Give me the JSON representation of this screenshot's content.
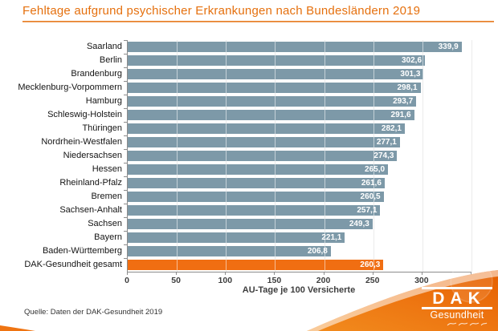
{
  "title": "Fehltage aufgrund psychischer Erkrankungen nach Bundesländern 2019",
  "chart_data": {
    "type": "bar",
    "orientation": "horizontal",
    "categories": [
      "Saarland",
      "Berlin",
      "Brandenburg",
      "Mecklenburg-Vorpommern",
      "Hamburg",
      "Schleswig-Holstein",
      "Thüringen",
      "Nordrhein-Westfalen",
      "Niedersachsen",
      "Hessen",
      "Rheinland-Pfalz",
      "Bremen",
      "Sachsen-Anhalt",
      "Sachsen",
      "Bayern",
      "Baden-Württemberg",
      "DAK-Gesundheit gesamt"
    ],
    "values": [
      339.9,
      302.6,
      301.3,
      298.1,
      293.7,
      291.6,
      282.1,
      277.1,
      274.3,
      265.0,
      261.6,
      260.5,
      257.1,
      249.3,
      221.1,
      206.8,
      260.3
    ],
    "value_labels": [
      "339,9",
      "302,6",
      "301,3",
      "298,1",
      "293,7",
      "291,6",
      "282,1",
      "277,1",
      "274,3",
      "265,0",
      "261,6",
      "260,5",
      "257,1",
      "249,3",
      "221,1",
      "206,8",
      "260,3"
    ],
    "title": "Fehltage aufgrund psychischer Erkrankungen nach Bundesländern 2019",
    "xlabel": "AU-Tage je 100 Versicherte",
    "ylabel": "",
    "xlim": [
      0,
      350
    ],
    "xticks": [
      0,
      50,
      100,
      150,
      200,
      250,
      300,
      350
    ],
    "grid": true,
    "legend": false,
    "highlight_index": 16,
    "bar_color": "#7d99a8",
    "highlight_color": "#f06e12"
  },
  "axis": {
    "xlabel": "AU-Tage je 100 Versicherte"
  },
  "source": "Quelle: Daten der DAK-Gesundheit 2019",
  "logo": {
    "brand": "DAK",
    "sub_brand": "Gesundheit"
  },
  "colors": {
    "title_orange": "#e5700e",
    "bar_blue_gray": "#7d99a8",
    "bar_orange": "#f06e12",
    "swoosh_orange_light": "#f28c1e",
    "swoosh_orange_dark": "#e55f00",
    "gridline_gray": "#d3d3d3",
    "axis_gray": "#8c8c8c"
  }
}
